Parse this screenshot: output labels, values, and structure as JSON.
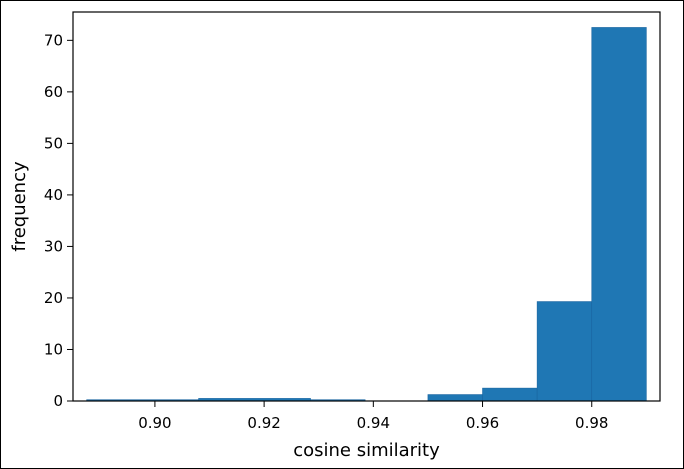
{
  "chart_data": {
    "type": "bar",
    "subtype": "histogram",
    "title": "",
    "xlabel": "cosine similarity",
    "ylabel": "frequency",
    "xlim": [
      0.885,
      0.9925
    ],
    "ylim": [
      0,
      75.5
    ],
    "x_ticks": [
      0.9,
      0.92,
      0.94,
      0.96,
      0.98
    ],
    "x_tick_labels": [
      "0.90",
      "0.92",
      "0.94",
      "0.96",
      "0.98"
    ],
    "y_ticks": [
      0,
      10,
      20,
      30,
      40,
      50,
      60,
      70
    ],
    "y_tick_labels": [
      "0",
      "10",
      "20",
      "30",
      "40",
      "50",
      "60",
      "70"
    ],
    "grid": false,
    "bar_color": "#1f77b4",
    "bins": [
      {
        "x0": 0.8875,
        "x1": 0.908,
        "value": 0.25
      },
      {
        "x0": 0.908,
        "x1": 0.9285,
        "value": 0.5
      },
      {
        "x0": 0.9285,
        "x1": 0.9385,
        "value": 0.25
      },
      {
        "x0": 0.9385,
        "x1": 0.95,
        "value": 0
      },
      {
        "x0": 0.95,
        "x1": 0.96,
        "value": 1.25
      },
      {
        "x0": 0.96,
        "x1": 0.97,
        "value": 2.5
      },
      {
        "x0": 0.97,
        "x1": 0.98,
        "value": 19.3
      },
      {
        "x0": 0.98,
        "x1": 0.99,
        "value": 72.5
      }
    ]
  }
}
